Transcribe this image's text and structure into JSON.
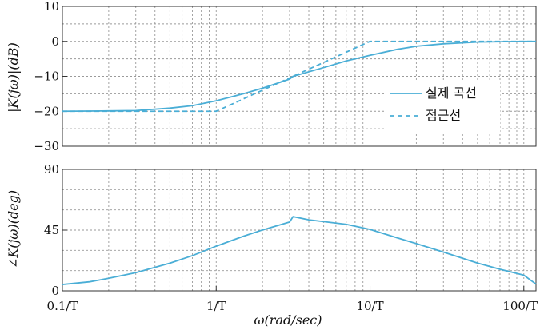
{
  "chart_data": [
    {
      "type": "line",
      "ylabel": "|K(jω)|(dB)",
      "ylim": [
        -30,
        10
      ],
      "yticks": [
        "10",
        "0",
        "−10",
        "−20",
        "−30"
      ],
      "ytick_values": [
        10,
        0,
        -10,
        -20,
        -30
      ],
      "x_scale": "log",
      "xlim": [
        0.1,
        120
      ],
      "grid": true,
      "legend_position": "right",
      "series": [
        {
          "name": "실제 곡선",
          "style": "solid",
          "color": "#4aaed6",
          "x": [
            0.1,
            0.2,
            0.3,
            0.5,
            0.7,
            1,
            1.5,
            2,
            3,
            3.16,
            5,
            7,
            10,
            15,
            20,
            30,
            50,
            100,
            120
          ],
          "y": [
            -20,
            -19.9,
            -19.8,
            -19.1,
            -18.4,
            -17,
            -15,
            -13.4,
            -10.8,
            -10,
            -7.5,
            -5.6,
            -4,
            -2.3,
            -1.4,
            -0.7,
            -0.2,
            0,
            0
          ]
        },
        {
          "name": "점근선",
          "style": "dashed",
          "color": "#4aaed6",
          "x": [
            0.1,
            1,
            10,
            120
          ],
          "y": [
            -20,
            -20,
            0,
            0
          ]
        }
      ]
    },
    {
      "type": "line",
      "xlabel": "ω(rad/sec)",
      "ylabel": "∠K(jω)(deg)",
      "ylim": [
        0,
        90
      ],
      "yticks": [
        "0",
        "45",
        "90"
      ],
      "ytick_values": [
        0,
        45,
        90
      ],
      "x_scale": "log",
      "xlim": [
        0.1,
        120
      ],
      "xticks": [
        "0.1/T",
        "1/T",
        "10/T",
        "100/T"
      ],
      "xtick_values": [
        0.1,
        1,
        10,
        100
      ],
      "grid": true,
      "series": [
        {
          "style": "solid",
          "color": "#4aaed6",
          "x": [
            0.1,
            0.15,
            0.2,
            0.3,
            0.5,
            0.7,
            1,
            1.5,
            2,
            3,
            3.16,
            4,
            5,
            7,
            10,
            15,
            20,
            30,
            50,
            70,
            100,
            120
          ],
          "y": [
            4.7,
            6.7,
            9.3,
            13.5,
            20.5,
            26.1,
            33.1,
            40.4,
            45.1,
            51,
            55,
            52.6,
            51.3,
            49.3,
            45.5,
            39.3,
            35,
            28.7,
            20.6,
            16,
            11.6,
            5
          ]
        }
      ]
    }
  ]
}
